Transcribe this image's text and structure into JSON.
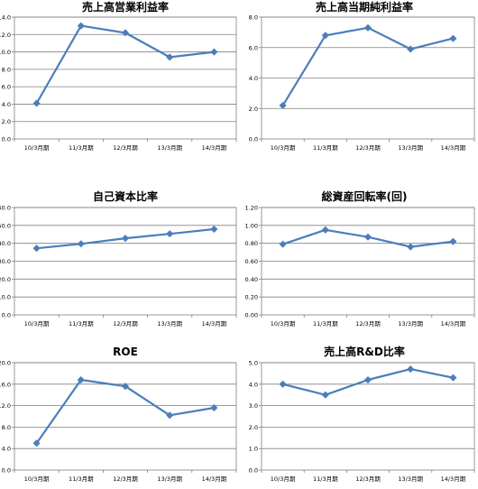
{
  "colors": {
    "series": "#4A7EBB",
    "axis": "#808080",
    "grid": "#808080",
    "text": "#000000",
    "background": "#ffffff"
  },
  "chart_data": [
    {
      "type": "line",
      "title": "売上高営業利益率",
      "categories": [
        "10/3月期",
        "11/3月期",
        "12/3月期",
        "13/3月期",
        "14/3月期"
      ],
      "series": [
        {
          "values": [
            4.1,
            13.0,
            12.2,
            9.4,
            10.0
          ]
        }
      ],
      "ylim": [
        0,
        14
      ],
      "yticks": [
        "0.0",
        "2.0",
        "4.0",
        "6.0",
        "8.0",
        "10.0",
        "12.0",
        "14.0"
      ],
      "marker": "diamond",
      "grid": "horizontal"
    },
    {
      "type": "line",
      "title": "売上高当期純利益率",
      "categories": [
        "10/3月期",
        "11/3月期",
        "12/3月期",
        "13/3月期",
        "14/3月期"
      ],
      "series": [
        {
          "values": [
            2.2,
            6.8,
            7.3,
            5.9,
            6.6
          ]
        }
      ],
      "ylim": [
        0,
        8
      ],
      "yticks": [
        "0.0",
        "2.0",
        "4.0",
        "6.0",
        "8.0"
      ],
      "marker": "diamond",
      "grid": "horizontal"
    },
    {
      "type": "line",
      "title": "自己資本比率",
      "categories": [
        "10/3月期",
        "11/3月期",
        "12/3月期",
        "13/3月期",
        "14/3月期"
      ],
      "series": [
        {
          "values": [
            37.2,
            39.7,
            42.8,
            45.3,
            47.9
          ]
        }
      ],
      "ylim": [
        0,
        60
      ],
      "yticks": [
        "0.0",
        "10.0",
        "20.0",
        "30.0",
        "40.0",
        "50.0",
        "60.0"
      ],
      "marker": "diamond",
      "grid": "horizontal"
    },
    {
      "type": "line",
      "title": "総資産回転率(回)",
      "categories": [
        "10/3月期",
        "11/3月期",
        "12/3月期",
        "13/3月期",
        "14/3月期"
      ],
      "series": [
        {
          "values": [
            0.79,
            0.95,
            0.87,
            0.76,
            0.82
          ]
        }
      ],
      "ylim": [
        0,
        1.2
      ],
      "yticks": [
        "0.00",
        "0.20",
        "0.40",
        "0.60",
        "0.80",
        "1.00",
        "1.20"
      ],
      "marker": "diamond",
      "grid": "horizontal"
    },
    {
      "type": "line",
      "title": "ROE",
      "categories": [
        "10/3月期",
        "11/3月期",
        "12/3月期",
        "13/3月期",
        "14/3月期"
      ],
      "series": [
        {
          "values": [
            5.0,
            16.8,
            15.6,
            10.2,
            11.6
          ]
        }
      ],
      "ylim": [
        0,
        20
      ],
      "yticks": [
        "0.0",
        "4.0",
        "8.0",
        "12.0",
        "16.0",
        "20.0"
      ],
      "marker": "diamond",
      "grid": "horizontal"
    },
    {
      "type": "line",
      "title": "売上高R&D比率",
      "categories": [
        "10/3月期",
        "11/3月期",
        "12/3月期",
        "13/3月期",
        "14/3月期"
      ],
      "series": [
        {
          "values": [
            4.0,
            3.5,
            4.2,
            4.7,
            4.3
          ]
        }
      ],
      "ylim": [
        0,
        5
      ],
      "yticks": [
        "0.0",
        "1.0",
        "2.0",
        "3.0",
        "4.0",
        "5.0"
      ],
      "marker": "diamond",
      "grid": "horizontal"
    }
  ]
}
